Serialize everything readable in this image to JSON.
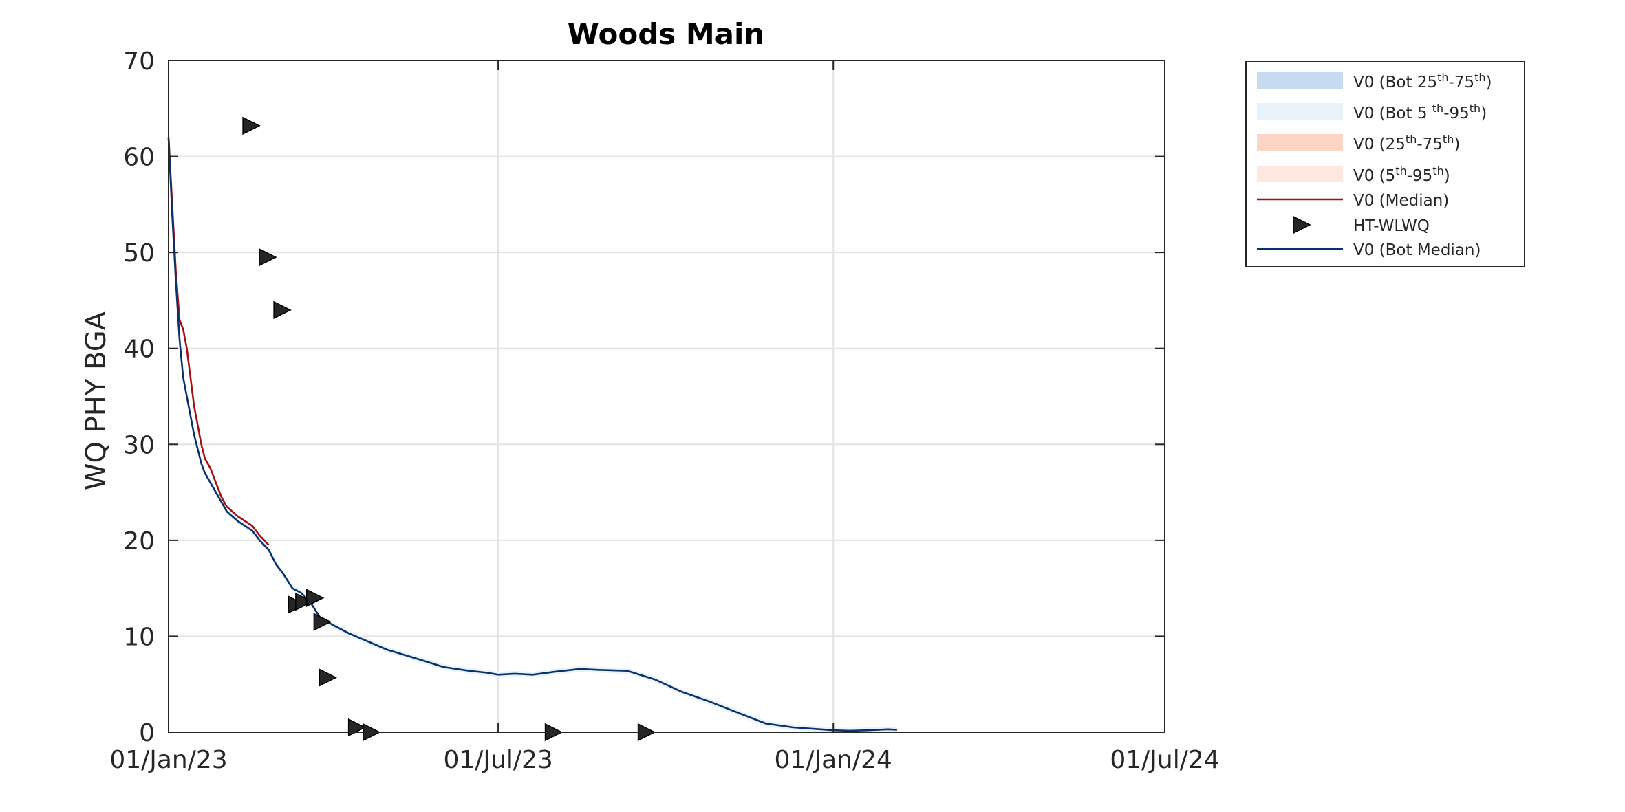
{
  "chart_data": {
    "type": "line",
    "title": "Woods Main",
    "xlabel": "",
    "ylabel": "WQ PHY BGA",
    "xlim": [
      "2023-01-01",
      "2024-07-01"
    ],
    "ylim": [
      0,
      70
    ],
    "grid": true,
    "legend_position": "outside-top-right",
    "x_ticks": [
      "2023-01-01",
      "2023-07-01",
      "2024-01-01",
      "2024-07-01"
    ],
    "x_tick_labels": [
      "01/Jan/23",
      "01/Jul/23",
      "01/Jan/24",
      "01/Jul/24"
    ],
    "y_ticks": [
      0,
      10,
      20,
      30,
      40,
      50,
      60,
      70
    ],
    "y_tick_labels": [
      "0",
      "10",
      "20",
      "30",
      "40",
      "50",
      "60",
      "70"
    ],
    "legend": [
      {
        "key": "bot_25_75",
        "parts": [
          [
            "V0 (Bot 25",
            ""
          ],
          [
            "th",
            "sup"
          ],
          [
            "-75",
            ""
          ],
          [
            "th",
            "sup"
          ],
          [
            ")",
            ""
          ]
        ],
        "color": "#c6dbef",
        "style": "patch"
      },
      {
        "key": "bot_5_95",
        "parts": [
          [
            "V0 (Bot 5 ",
            ""
          ],
          [
            "th",
            "sup"
          ],
          [
            "-95",
            ""
          ],
          [
            "th",
            "sup"
          ],
          [
            ")",
            ""
          ]
        ],
        "color": "#eaf2fa",
        "style": "patch"
      },
      {
        "key": "p25_75",
        "parts": [
          [
            "V0 (25",
            ""
          ],
          [
            "th",
            "sup"
          ],
          [
            "-75",
            ""
          ],
          [
            "th",
            "sup"
          ],
          [
            ")",
            ""
          ]
        ],
        "color": "#fcd5c5",
        "style": "patch"
      },
      {
        "key": "p5_95",
        "parts": [
          [
            "V0 (5",
            ""
          ],
          [
            "th",
            "sup"
          ],
          [
            "-95",
            ""
          ],
          [
            "th",
            "sup"
          ],
          [
            ")",
            ""
          ]
        ],
        "color": "#fde9e0",
        "style": "patch"
      },
      {
        "key": "median",
        "parts": [
          [
            "V0 (Median)",
            ""
          ]
        ],
        "color": "#a50f15",
        "style": "line"
      },
      {
        "key": "obs",
        "parts": [
          [
            "HT-WLWQ",
            ""
          ]
        ],
        "color": "#262626",
        "style": "marker"
      },
      {
        "key": "bot_median",
        "parts": [
          [
            "V0 (Bot Median)",
            ""
          ]
        ],
        "color": "#08306b",
        "style": "line"
      }
    ],
    "series": [
      {
        "name": "V0 (Median)",
        "color": "#a50f15",
        "x": [
          "2023-01-01",
          "2023-01-03",
          "2023-01-05",
          "2023-01-07",
          "2023-01-09",
          "2023-01-11",
          "2023-01-13",
          "2023-01-15",
          "2023-01-17",
          "2023-01-19",
          "2023-01-21",
          "2023-01-24",
          "2023-01-27",
          "2023-01-30",
          "2023-02-02",
          "2023-02-05",
          "2023-02-08",
          "2023-02-12",
          "2023-02-16",
          "2023-02-20",
          "2023-02-25"
        ],
        "y": [
          62,
          55,
          48,
          43,
          42,
          40,
          37,
          34,
          32,
          30,
          28.5,
          27.5,
          26,
          24.5,
          23.5,
          23,
          22.5,
          22,
          21.5,
          20.5,
          19.5
        ]
      },
      {
        "name": "V0 (Bot Median)",
        "color": "#08306b",
        "x": [
          "2023-01-01",
          "2023-01-03",
          "2023-01-05",
          "2023-01-07",
          "2023-01-09",
          "2023-01-11",
          "2023-01-13",
          "2023-01-15",
          "2023-01-17",
          "2023-01-19",
          "2023-01-21",
          "2023-01-24",
          "2023-01-27",
          "2023-01-30",
          "2023-02-02",
          "2023-02-05",
          "2023-02-08",
          "2023-02-12",
          "2023-02-16",
          "2023-02-20",
          "2023-02-25",
          "2023-03-01",
          "2023-03-05",
          "2023-03-10",
          "2023-03-15",
          "2023-03-20",
          "2023-03-25",
          "2023-04-01",
          "2023-04-10",
          "2023-04-20",
          "2023-05-01",
          "2023-05-15",
          "2023-06-01",
          "2023-06-15",
          "2023-06-25",
          "2023-07-01",
          "2023-07-10",
          "2023-07-20",
          "2023-08-01",
          "2023-08-15",
          "2023-08-25",
          "2023-09-10",
          "2023-09-25",
          "2023-10-10",
          "2023-10-25",
          "2023-11-10",
          "2023-11-25",
          "2023-12-10",
          "2023-12-25",
          "2024-01-01",
          "2024-01-10",
          "2024-01-20",
          "2024-01-31",
          "2024-02-05"
        ],
        "y": [
          62,
          54,
          47,
          41,
          37,
          35,
          33,
          31,
          29.5,
          28,
          27,
          26,
          25,
          24,
          23,
          22.5,
          22,
          21.5,
          21,
          20,
          19,
          17.5,
          16.5,
          15,
          14.5,
          13.5,
          12,
          11.2,
          10.3,
          9.5,
          8.6,
          7.8,
          6.8,
          6.4,
          6.2,
          6.0,
          6.1,
          6.0,
          6.3,
          6.6,
          6.5,
          6.4,
          5.5,
          4.2,
          3.2,
          2.0,
          0.9,
          0.5,
          0.3,
          0.2,
          0.15,
          0.2,
          0.3,
          0.25
        ]
      }
    ],
    "markers": {
      "name": "HT-WLWQ",
      "color": "#262626",
      "x": [
        "2023-02-15",
        "2023-02-24",
        "2023-03-04",
        "2023-03-12",
        "2023-03-16",
        "2023-03-22",
        "2023-03-26",
        "2023-03-29",
        "2023-04-14",
        "2023-04-22",
        "2023-07-31",
        "2023-09-20"
      ],
      "y": [
        63.2,
        49.5,
        44,
        13.3,
        13.6,
        14.0,
        11.5,
        5.7,
        0.5,
        0.0,
        0.0,
        0.0
      ]
    }
  }
}
